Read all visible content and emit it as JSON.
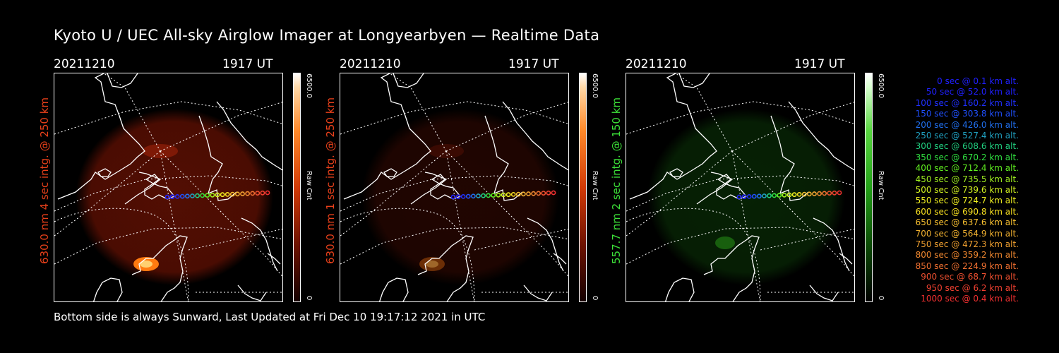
{
  "title": "Kyoto U / UEC All-sky Airglow Imager at Longyearbyen — Realtime Data",
  "footer": "Bottom side is always Sunward, Last Updated at Fri Dec 10 19:17:12 2021 in UTC",
  "panels": [
    {
      "date": "20211210",
      "time": "1917 UT",
      "ylabel": "630.0 nm 4 sec intg. @ 250 km",
      "ylabel_color": "#e8401a",
      "cbar_max": "6500.0",
      "cbar_min": "0",
      "cbar_label": "Raw Cnt",
      "emission_color": "red"
    },
    {
      "date": "20211210",
      "time": "1917 UT",
      "ylabel": "630.0 nm 1 sec intg. @ 250 km",
      "ylabel_color": "#e8401a",
      "cbar_max": "6500.0",
      "cbar_min": "0",
      "cbar_label": "Raw Cnt",
      "emission_color": "red"
    },
    {
      "date": "20211210",
      "time": "1917 UT",
      "ylabel": "557.7 nm 2 sec intg. @ 150 km",
      "ylabel_color": "#3ce038",
      "cbar_max": "6500.0",
      "cbar_min": "0",
      "cbar_label": "Raw Cnt",
      "emission_color": "green"
    }
  ],
  "altitude_legend": [
    {
      "sec": "0",
      "alt": "0.1",
      "color": "#2020ff"
    },
    {
      "sec": "50",
      "alt": "52.0",
      "color": "#2020ff"
    },
    {
      "sec": "100",
      "alt": "160.2",
      "color": "#2030ff"
    },
    {
      "sec": "150",
      "alt": "303.8",
      "color": "#2050ff"
    },
    {
      "sec": "200",
      "alt": "426.0",
      "color": "#2070f0"
    },
    {
      "sec": "250",
      "alt": "527.4",
      "color": "#20a0c0"
    },
    {
      "sec": "300",
      "alt": "608.6",
      "color": "#20d080"
    },
    {
      "sec": "350",
      "alt": "670.2",
      "color": "#30e040"
    },
    {
      "sec": "400",
      "alt": "712.4",
      "color": "#60f020"
    },
    {
      "sec": "450",
      "alt": "735.5",
      "color": "#a0f020"
    },
    {
      "sec": "500",
      "alt": "739.6",
      "color": "#d0f020"
    },
    {
      "sec": "550",
      "alt": "724.7",
      "color": "#f0f020"
    },
    {
      "sec": "600",
      "alt": "690.8",
      "color": "#f8e020"
    },
    {
      "sec": "650",
      "alt": "637.6",
      "color": "#f8c030"
    },
    {
      "sec": "700",
      "alt": "564.9",
      "color": "#f0b030"
    },
    {
      "sec": "750",
      "alt": "472.3",
      "color": "#f0a030"
    },
    {
      "sec": "800",
      "alt": "359.2",
      "color": "#f08830"
    },
    {
      "sec": "850",
      "alt": "224.9",
      "color": "#f07030"
    },
    {
      "sec": "900",
      "alt": "68.7",
      "color": "#f05030"
    },
    {
      "sec": "950",
      "alt": "6.2",
      "color": "#f04030"
    },
    {
      "sec": "1000",
      "alt": "0.4",
      "color": "#f03030"
    }
  ],
  "chart_data": {
    "type": "heatmap",
    "title": "Kyoto U / UEC All-sky Airglow Imager at Longyearbyen — Realtime Data",
    "colorbar_range": [
      0,
      6500.0
    ],
    "colorbar_label": "Raw Cnt",
    "series": [
      {
        "wavelength": "630.0 nm",
        "integration": "4 sec",
        "altitude": "250 km"
      },
      {
        "wavelength": "630.0 nm",
        "integration": "1 sec",
        "altitude": "250 km"
      },
      {
        "wavelength": "557.7 nm",
        "integration": "2 sec",
        "altitude": "150 km"
      }
    ],
    "track": {
      "sec": [
        0,
        50,
        100,
        150,
        200,
        250,
        300,
        350,
        400,
        450,
        500,
        550,
        600,
        650,
        700,
        750,
        800,
        850,
        900,
        950,
        1000
      ],
      "alt_km": [
        0.1,
        52.0,
        160.2,
        303.8,
        426.0,
        527.4,
        608.6,
        670.2,
        712.4,
        735.5,
        739.6,
        724.7,
        690.8,
        637.6,
        564.9,
        472.3,
        359.2,
        224.9,
        68.7,
        6.2,
        0.4
      ]
    }
  }
}
